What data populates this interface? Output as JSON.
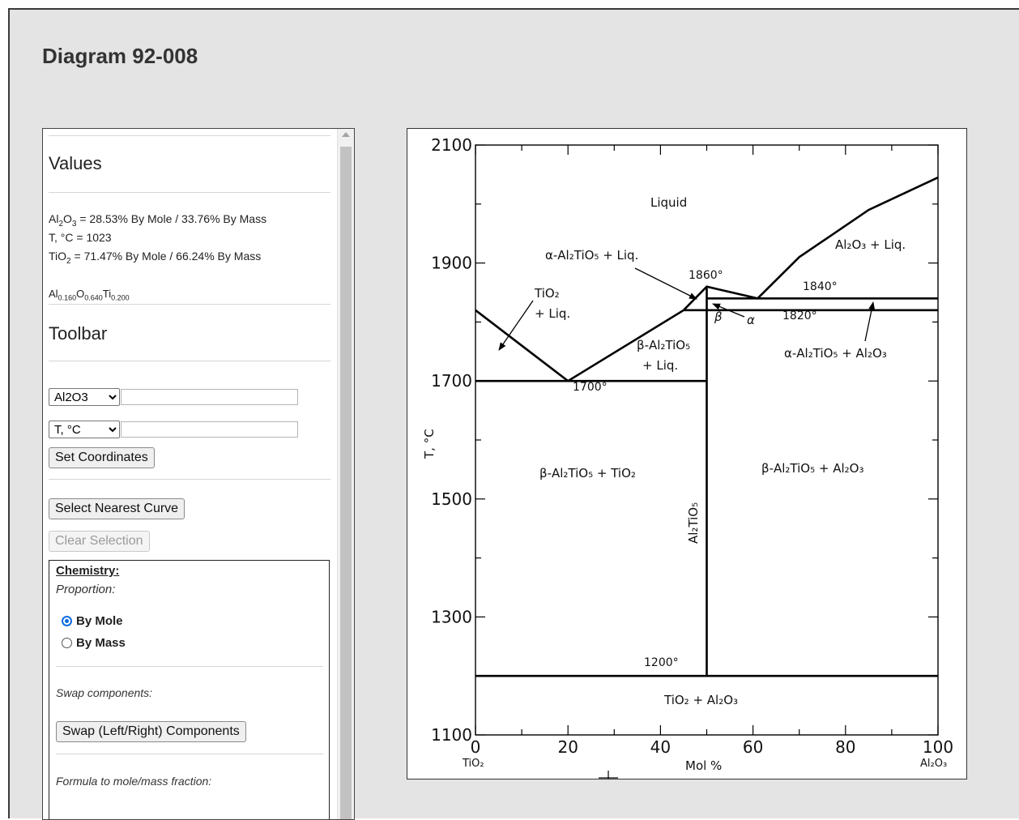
{
  "page": {
    "title": "Diagram 92-008"
  },
  "values": {
    "heading": "Values",
    "line1_comp": "Al",
    "line1_sub1": "2",
    "line1_comp2": "O",
    "line1_sub2": "3",
    "line1_rest": " = 28.53% By Mole / 33.76% By Mass",
    "line2": "T, °C = 1023",
    "line3_comp": "TiO",
    "line3_sub": "2",
    "line3_rest": " = 71.47% By Mole / 66.24% By Mass",
    "formula": [
      {
        "el": "Al",
        "n": "0.160"
      },
      {
        "el": "O",
        "n": "0.640"
      },
      {
        "el": "Ti",
        "n": "0.200"
      }
    ]
  },
  "toolbar": {
    "heading": "Toolbar",
    "select1": {
      "selected": "Al2O3",
      "input_value": ""
    },
    "select2": {
      "selected": "T, °C",
      "input_value": ""
    },
    "set_coordinates": "Set Coordinates",
    "select_nearest_curve": "Select Nearest Curve",
    "clear_selection": "Clear Selection"
  },
  "chemistry": {
    "title": "Chemistry:",
    "proportion_label": "Proportion:",
    "options": [
      "By Mole",
      "By Mass"
    ],
    "selected": "By Mole",
    "swap_label": "Swap components:",
    "swap_button": "Swap (Left/Right) Components",
    "formula_label": "Formula to mole/mass fraction:"
  },
  "diagram": {
    "labels": {
      "liquid": "Liquid",
      "alpha_liq": "α-Al₂TiO₅ + Liq.",
      "t1860": "1860°",
      "al2o3_liq": "Al₂O₃ + Liq.",
      "t1840": "1840°",
      "tio2": "TiO₂",
      "tio2_liq": "+ Liq.",
      "beta": "β",
      "alpha": "α",
      "t1820": "1820°",
      "beta_al2tio5": "β-Al₂TiO₅",
      "beta_liq": "+ Liq.",
      "alpha_al2o3": "α-Al₂TiO₅ + Al₂O₃",
      "t1700": "1700°",
      "beta_tio2": "β-Al₂TiO₅ + TiO₂",
      "beta_al2o3": "β-Al₂TiO₅ + Al₂O₃",
      "al2tio5_vertical": "Al₂TiO₅",
      "t1200": "1200°",
      "tio2_al2o3": "TiO₂ + Al₂O₃",
      "left_component": "TiO₂",
      "right_component": "Al₂O₃"
    },
    "y_axis_label": "T, °C",
    "x_axis_label": "Mol %",
    "y_ticks": [
      "2100",
      "1900",
      "1700",
      "1500",
      "1300",
      "1100"
    ],
    "x_ticks": [
      "0",
      "20",
      "40",
      "60",
      "80",
      "100"
    ]
  },
  "chart_data": {
    "type": "line",
    "xlabel": "Mol %",
    "ylabel": "T, °C",
    "xlim": [
      0,
      100
    ],
    "ylim": [
      1100,
      2100
    ],
    "series": [
      {
        "values": [
          [
            0,
            1820
          ],
          [
            20,
            1700
          ],
          [
            45,
            1820
          ],
          [
            50,
            1860
          ],
          [
            61,
            1840
          ],
          [
            70,
            1910
          ],
          [
            85,
            1990
          ],
          [
            100,
            2045
          ]
        ]
      },
      {
        "values": [
          [
            0,
            1700
          ],
          [
            50,
            1700
          ]
        ]
      },
      {
        "values": [
          [
            50,
            1200
          ],
          [
            50,
            1860
          ]
        ]
      },
      {
        "values": [
          [
            45,
            1820
          ],
          [
            100,
            1820
          ]
        ]
      },
      {
        "values": [
          [
            50,
            1840
          ],
          [
            100,
            1840
          ]
        ]
      },
      {
        "values": [
          [
            0,
            1200
          ],
          [
            100,
            1200
          ]
        ]
      }
    ]
  }
}
